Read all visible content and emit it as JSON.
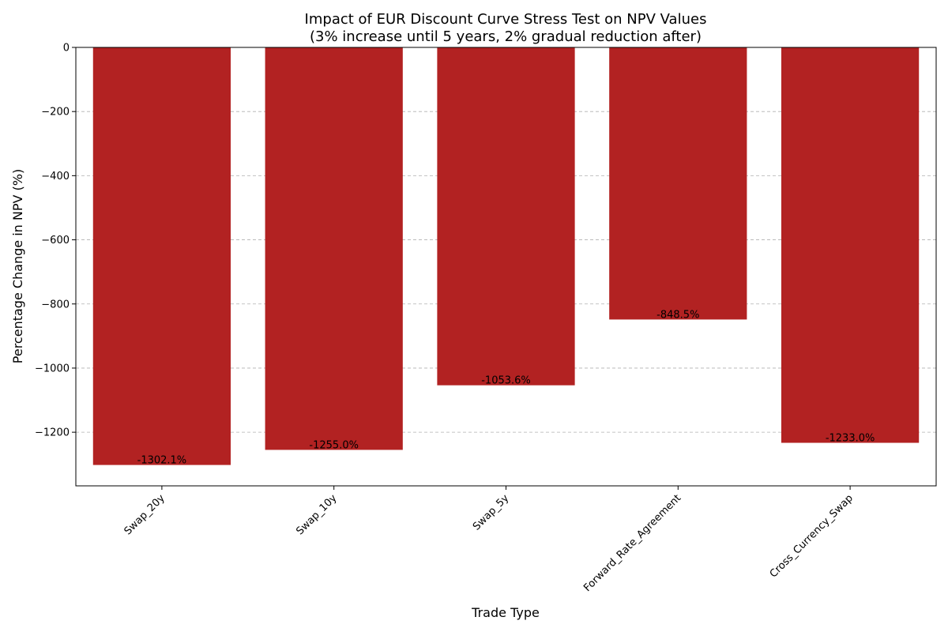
{
  "chart_data": {
    "type": "bar",
    "title": "Impact of EUR Discount Curve Stress Test on NPV Values",
    "subtitle": "(3% increase until 5 years, 2% gradual reduction after)",
    "xlabel": "Trade Type",
    "ylabel": "Percentage Change in NPV (%)",
    "categories": [
      "Swap_20y",
      "Swap_10y",
      "Swap_5y",
      "Forward_Rate_Agreement",
      "Cross_Currency_Swap"
    ],
    "values": [
      -1302.1,
      -1255.0,
      -1053.6,
      -848.5,
      -1233.0
    ],
    "data_labels": [
      "-1302.1%",
      "-1255.0%",
      "-1053.6%",
      "-848.5%",
      "-1233.0%"
    ],
    "y_ticks": [
      0,
      -200,
      -400,
      -600,
      -800,
      -1000,
      -1200
    ],
    "y_tick_labels": [
      "0",
      "−200",
      "−400",
      "−600",
      "−800",
      "−1000",
      "−1200"
    ],
    "ylim": [
      -1367.2,
      0
    ],
    "grid": "y-dashed",
    "bar_color": "#b22222",
    "grid_color": "#b0b0b0",
    "axis_color": "#000000"
  }
}
